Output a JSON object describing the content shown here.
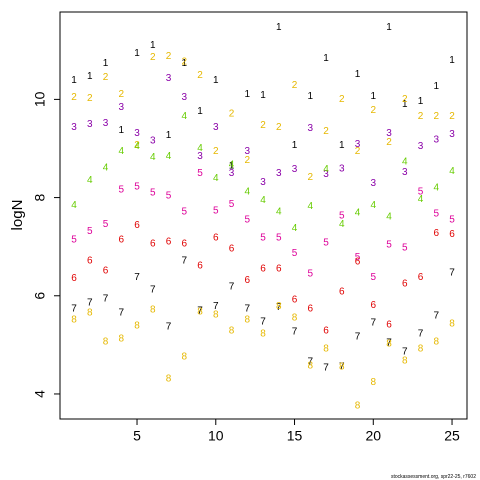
{
  "chart_data": {
    "type": "scatter",
    "y_label": "logN",
    "footnote": "stockassessment.org, spr22-25, r7602",
    "x": [
      1,
      2,
      3,
      4,
      5,
      6,
      7,
      8,
      9,
      10,
      11,
      12,
      13,
      14,
      15,
      16,
      17,
      18,
      19,
      20,
      21,
      22,
      23,
      24,
      25
    ],
    "xlim": [
      0.11,
      25.95
    ],
    "xticks": [
      5,
      10,
      15,
      20,
      25
    ],
    "ylim": [
      3.49,
      11.78
    ],
    "yticks": [
      4,
      6,
      8,
      10
    ],
    "series": [
      {
        "name": "1",
        "color": "#000000",
        "values": [
          10.39,
          10.47,
          10.73,
          9.37,
          10.94,
          11.1,
          9.27,
          10.73,
          9.76,
          10.39,
          8.65,
          10.1,
          10.08,
          11.47,
          9.06,
          10.06,
          10.84,
          9.06,
          10.51,
          10.06,
          11.47,
          9.9,
          9.96,
          10.27,
          10.8
        ]
      },
      {
        "name": "2",
        "color": "#e6b800",
        "values": [
          10.04,
          10.02,
          10.45,
          10.1,
          9.06,
          10.86,
          10.88,
          10.76,
          10.49,
          8.94,
          9.71,
          8.76,
          9.47,
          9.43,
          10.29,
          8.41,
          9.35,
          10.0,
          8.94,
          9.78,
          9.12,
          10.0,
          9.65,
          9.65,
          9.65
        ]
      },
      {
        "name": "3",
        "color": "#8a00a8",
        "values": [
          9.43,
          9.49,
          9.51,
          9.84,
          9.31,
          9.16,
          10.43,
          10.04,
          8.84,
          9.43,
          8.49,
          8.94,
          8.31,
          8.49,
          8.57,
          9.41,
          8.47,
          8.59,
          9.08,
          8.29,
          9.31,
          8.51,
          9.04,
          9.18,
          9.29
        ]
      },
      {
        "name": "4",
        "color": "#66cc00",
        "values": [
          7.84,
          8.35,
          8.61,
          8.94,
          9.04,
          8.82,
          8.84,
          9.65,
          9.0,
          8.39,
          8.67,
          8.12,
          7.94,
          7.71,
          7.37,
          7.82,
          8.57,
          7.45,
          7.69,
          7.84,
          7.61,
          8.73,
          7.96,
          8.2,
          8.53
        ]
      },
      {
        "name": "5",
        "color": "#dd0099",
        "values": [
          7.14,
          7.31,
          7.45,
          8.16,
          8.22,
          8.1,
          8.04,
          7.71,
          8.49,
          7.73,
          7.86,
          7.55,
          7.18,
          7.18,
          6.86,
          6.45,
          7.08,
          7.63,
          6.78,
          6.37,
          7.04,
          6.98,
          8.12,
          7.67,
          7.55
        ]
      },
      {
        "name": "6",
        "color": "#e00000",
        "values": [
          6.35,
          6.71,
          6.51,
          7.14,
          7.43,
          7.06,
          7.1,
          7.06,
          6.61,
          7.18,
          6.96,
          6.31,
          6.55,
          6.55,
          5.92,
          5.73,
          5.29,
          6.08,
          6.69,
          5.8,
          5.41,
          6.24,
          6.37,
          7.27,
          7.25
        ]
      },
      {
        "name": "7",
        "color": "#000000",
        "values": [
          5.73,
          5.86,
          5.94,
          5.65,
          6.37,
          6.12,
          5.37,
          6.71,
          5.69,
          5.78,
          6.18,
          5.73,
          5.47,
          5.76,
          5.27,
          4.65,
          4.53,
          4.55,
          5.16,
          5.45,
          5.04,
          4.86,
          5.22,
          5.59,
          6.47
        ]
      },
      {
        "name": "8",
        "color": "#e6b800",
        "values": [
          5.51,
          5.65,
          5.06,
          5.12,
          5.39,
          5.71,
          4.31,
          4.76,
          5.67,
          5.61,
          5.29,
          5.51,
          5.22,
          5.78,
          5.55,
          4.57,
          4.92,
          4.55,
          3.76,
          4.24,
          5.02,
          4.67,
          4.92,
          5.06,
          5.43
        ]
      }
    ]
  }
}
